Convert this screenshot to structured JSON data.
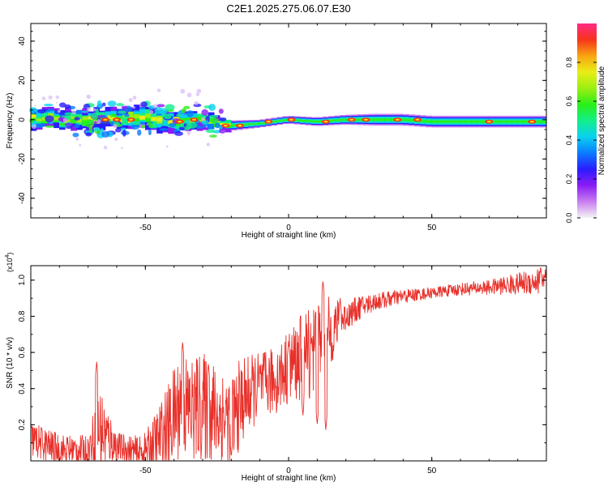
{
  "title": "C2E1.2025.275.06.07.E30",
  "chart_data": [
    {
      "type": "heatmap",
      "xlabel": "Height of straight line (km)",
      "ylabel": "Frequency (Hz)",
      "xlim": [
        -90,
        90
      ],
      "ylim": [
        -50,
        49
      ],
      "xticks": [
        -50,
        0,
        50
      ],
      "yticks": [
        -40,
        -20,
        0,
        20,
        40
      ],
      "colorbar": {
        "label": "Normalized spectral amplitude",
        "range": [
          0,
          1
        ],
        "ticks": [
          0.0,
          0.2,
          0.4,
          0.6,
          0.8
        ],
        "colormap": [
          "#f4f4f4",
          "#c97ff0",
          "#8b1cf5",
          "#2a1cff",
          "#0a7bff",
          "#0ad1f0",
          "#12ef8a",
          "#2aef18",
          "#9cee12",
          "#e8ee16",
          "#f9a512",
          "#f6341a",
          "#ff2a86"
        ]
      },
      "band": {
        "center_frequency_hz": [
          [
            -90,
            0.5
          ],
          [
            -70,
            0
          ],
          [
            -50,
            1
          ],
          [
            -40,
            -1
          ],
          [
            -30,
            0
          ],
          [
            -20,
            -3
          ],
          [
            -10,
            -2
          ],
          [
            0,
            0
          ],
          [
            10,
            -1
          ],
          [
            20,
            0
          ],
          [
            30,
            0
          ],
          [
            40,
            0
          ],
          [
            50,
            -1
          ],
          [
            60,
            -1
          ],
          [
            70,
            -1
          ],
          [
            80,
            -1
          ],
          [
            90,
            -1
          ]
        ],
        "half_width_hz": [
          [
            -90,
            5
          ],
          [
            -60,
            5
          ],
          [
            -50,
            6
          ],
          [
            -35,
            5
          ],
          [
            -25,
            3
          ],
          [
            -10,
            2
          ],
          [
            0,
            2
          ],
          [
            20,
            2.5
          ],
          [
            30,
            3
          ],
          [
            50,
            3
          ],
          [
            90,
            3
          ]
        ],
        "peak_points": [
          {
            "x": -64,
            "y": 0
          },
          {
            "x": -60,
            "y": 0
          },
          {
            "x": -55,
            "y": 0
          },
          {
            "x": -38,
            "y": -1
          },
          {
            "x": -33,
            "y": 0
          },
          {
            "x": -22,
            "y": -3
          },
          {
            "x": -17,
            "y": -3
          },
          {
            "x": -7,
            "y": -1
          },
          {
            "x": 1,
            "y": 0
          },
          {
            "x": 13,
            "y": -1
          },
          {
            "x": 22,
            "y": 0
          },
          {
            "x": 27,
            "y": 0
          },
          {
            "x": 38,
            "y": 0
          },
          {
            "x": 45,
            "y": 0
          },
          {
            "x": 70,
            "y": -1
          },
          {
            "x": 85,
            "y": -1
          }
        ]
      }
    },
    {
      "type": "line",
      "xlabel": "Height of straight line (km)",
      "ylabel": "SNR (10 * v/v)",
      "y_multiplier": "(x10",
      "y_multiplier_exponent": "4",
      "y_multiplier_close": ")",
      "xlim": [
        -90,
        90
      ],
      "ylim": [
        0,
        1.08
      ],
      "xticks": [
        -50,
        0,
        50
      ],
      "yticks": [
        0.2,
        0.4,
        0.6,
        0.8,
        1.0
      ],
      "color": "#e8302a",
      "series": [
        {
          "name": "SNR",
          "envelope": [
            [
              -90,
              0.12
            ],
            [
              -80,
              0.06
            ],
            [
              -70,
              0.06
            ],
            [
              -66,
              0.18
            ],
            [
              -60,
              0.08
            ],
            [
              -52,
              0.04
            ],
            [
              -48,
              0.08
            ],
            [
              -42,
              0.18
            ],
            [
              -38,
              0.32
            ],
            [
              -34,
              0.28
            ],
            [
              -30,
              0.3
            ],
            [
              -26,
              0.26
            ],
            [
              -22,
              0.24
            ],
            [
              -20,
              0.22
            ],
            [
              -16,
              0.34
            ],
            [
              -10,
              0.42
            ],
            [
              -5,
              0.44
            ],
            [
              0,
              0.52
            ],
            [
              5,
              0.58
            ],
            [
              10,
              0.64
            ],
            [
              15,
              0.72
            ],
            [
              20,
              0.8
            ],
            [
              25,
              0.85
            ],
            [
              30,
              0.88
            ],
            [
              40,
              0.91
            ],
            [
              50,
              0.93
            ],
            [
              60,
              0.95
            ],
            [
              70,
              0.96
            ],
            [
              80,
              0.98
            ],
            [
              90,
              1.0
            ]
          ],
          "noise": [
            [
              -90,
              0.1
            ],
            [
              -70,
              0.08
            ],
            [
              -66,
              0.25
            ],
            [
              -60,
              0.08
            ],
            [
              -50,
              0.1
            ],
            [
              -42,
              0.25
            ],
            [
              -38,
              0.3
            ],
            [
              -30,
              0.3
            ],
            [
              -20,
              0.28
            ],
            [
              -10,
              0.18
            ],
            [
              0,
              0.2
            ],
            [
              10,
              0.3
            ],
            [
              15,
              0.18
            ],
            [
              20,
              0.08
            ],
            [
              30,
              0.05
            ],
            [
              50,
              0.03
            ],
            [
              70,
              0.04
            ],
            [
              80,
              0.06
            ],
            [
              90,
              0.08
            ]
          ],
          "peaks": [
            {
              "x": -67,
              "y": 0.55
            },
            {
              "x": -37,
              "y": 0.66
            },
            {
              "x": -28,
              "y": 0.54
            },
            {
              "x": 0,
              "y": 0.66
            },
            {
              "x": 8,
              "y": 0.68
            },
            {
              "x": 12,
              "y": 1.0
            },
            {
              "x": 18,
              "y": 0.9
            },
            {
              "x": 88,
              "y": 1.08
            }
          ],
          "dips": [
            {
              "x": -20,
              "y": 0.02
            },
            {
              "x": 5,
              "y": 0.25
            },
            {
              "x": 10,
              "y": 0.2
            },
            {
              "x": 13,
              "y": 0.17
            }
          ]
        }
      ]
    }
  ]
}
